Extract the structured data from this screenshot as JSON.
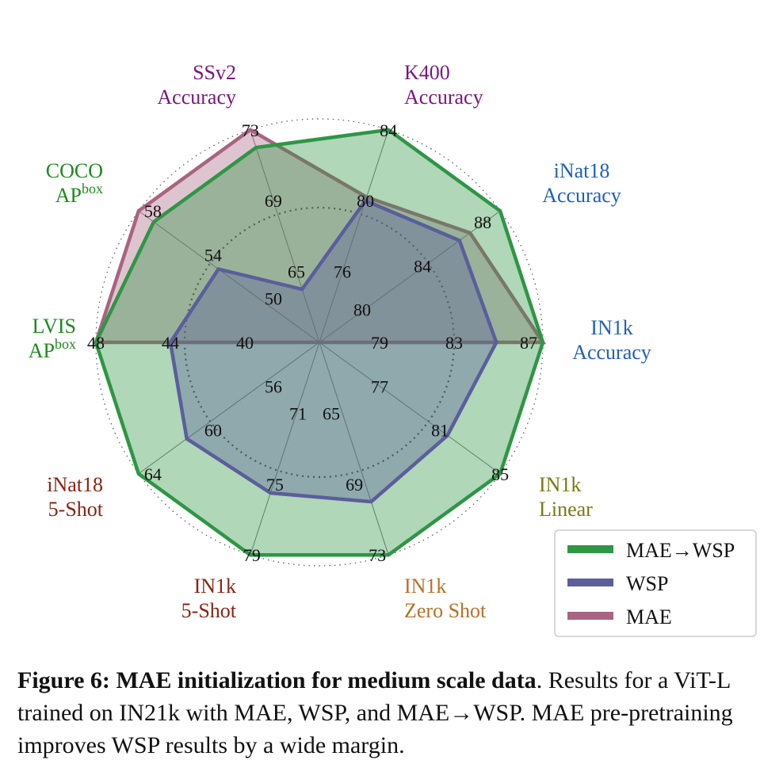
{
  "chart_data": {
    "type": "radar",
    "axes": [
      {
        "line1": "IN1k",
        "line2": "Accuracy",
        "line2_sup": "",
        "color": "#1f5fbf",
        "ticks": [
          "79",
          "83",
          "87"
        ],
        "min": 75,
        "max": 87
      },
      {
        "line1": "iNat18",
        "line2": "Accuracy",
        "line2_sup": "",
        "color": "#1f5fbf",
        "ticks": [
          "80",
          "84",
          "88"
        ],
        "min": 76,
        "max": 88
      },
      {
        "line1": "K400",
        "line2": "Accuracy",
        "line2_sup": "",
        "color": "#7a157f",
        "ticks": [
          "76",
          "80",
          "84"
        ],
        "min": 72,
        "max": 84
      },
      {
        "line1": "SSv2",
        "line2": "Accuracy",
        "line2_sup": "",
        "color": "#7a157f",
        "ticks": [
          "65",
          "69",
          "73"
        ],
        "min": 61,
        "max": 73
      },
      {
        "line1": "COCO",
        "line2": "AP",
        "line2_sup": "box",
        "color": "#1e8a1e",
        "ticks": [
          "50",
          "54",
          "58"
        ],
        "min": 46,
        "max": 58
      },
      {
        "line1": "LVIS",
        "line2": "AP",
        "line2_sup": "box",
        "color": "#1e8a1e",
        "ticks": [
          "40",
          "44",
          "48"
        ],
        "min": 36,
        "max": 48
      },
      {
        "line1": "iNat18",
        "line2": "5-Shot",
        "line2_sup": "",
        "color": "#8b2312",
        "ticks": [
          "56",
          "60",
          "64"
        ],
        "min": 52,
        "max": 64
      },
      {
        "line1": "IN1k",
        "line2": "5-Shot",
        "line2_sup": "",
        "color": "#8b2312",
        "ticks": [
          "71",
          "75",
          "79"
        ],
        "min": 67,
        "max": 79
      },
      {
        "line1": "IN1k",
        "line2": "Zero Shot",
        "line2_sup": "",
        "color": "#b8702a",
        "ticks": [
          "65",
          "69",
          "73"
        ],
        "min": 61,
        "max": 73
      },
      {
        "line1": "IN1k",
        "line2": "Linear",
        "line2_sup": "",
        "color": "#7a7a10",
        "ticks": [
          "77",
          "81",
          "85"
        ],
        "min": 73,
        "max": 85
      }
    ],
    "series": [
      {
        "name": "MAE→WSP",
        "color": "#2e9645",
        "values": [
          87,
          88,
          84,
          72,
          57,
          48,
          64,
          79,
          73,
          85
        ]
      },
      {
        "name": "WSP",
        "color": "#5b5e9b",
        "values": [
          84.5,
          85.3,
          80,
          64,
          52.7,
          44,
          60.8,
          75.5,
          70,
          81.5
        ]
      },
      {
        "name": "MAE",
        "color": "#a86480",
        "values": [
          87,
          86,
          80.2,
          73,
          58,
          48
        ]
      }
    ],
    "legend": "bottom-right"
  },
  "caption": {
    "label": "Figure 6:",
    "bold_title": "MAE initialization for medium scale data",
    "body": ".  Results for a ViT-L trained on IN21k with MAE, WSP, and MAE→WSP. MAE pre-pretraining improves WSP results by a wide margin."
  }
}
